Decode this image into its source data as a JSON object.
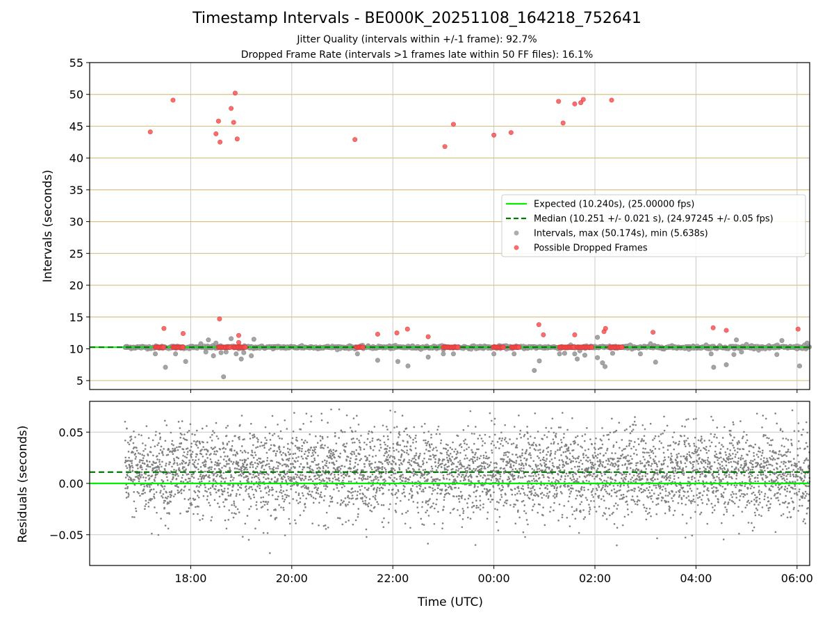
{
  "title": "Timestamp Intervals - BE000K_20251108_164218_752641",
  "subtitle_lines": [
    "Jitter Quality (intervals within +/-1 frame): 92.7%",
    "Dropped Frame Rate (intervals >1 frames late within 50 FF files): 16.1%"
  ],
  "chart_data": [
    {
      "type": "scatter",
      "panel": "top",
      "ylabel": "Intervals (seconds)",
      "xlim_hours": [
        16.0,
        30.25
      ],
      "ylim": [
        3.6,
        55
      ],
      "yticks": [
        5,
        10,
        15,
        20,
        25,
        30,
        35,
        40,
        45,
        50,
        55
      ],
      "hlines_minor": [
        5,
        15,
        20,
        25,
        30,
        35,
        40,
        45,
        50
      ],
      "expected_line": 10.24,
      "median_line": 10.251,
      "legend": {
        "placement": "center-right",
        "entries": [
          {
            "label": "Expected (10.240s), (25.00000 fps)",
            "kind": "line",
            "color": "#00ee00"
          },
          {
            "label": "Median (10.251 +/- 0.021 s), (24.97245 +/- 0.05 fps)",
            "kind": "dashed",
            "color": "#007700"
          },
          {
            "label": "Intervals, max (50.174s), min (5.638s)",
            "kind": "marker",
            "color": "#a0a0a0"
          },
          {
            "label": "Possible Dropped Frames",
            "kind": "marker",
            "color": "#f55555"
          }
        ]
      },
      "interval_band": {
        "x_start": 16.7,
        "x_end": 30.25,
        "y": 10.24
      },
      "intervals_outliers": [
        [
          17.3,
          9.2
        ],
        [
          17.5,
          7.1
        ],
        [
          17.7,
          9.2
        ],
        [
          17.9,
          8.0
        ],
        [
          18.2,
          10.8
        ],
        [
          18.3,
          9.5
        ],
        [
          18.35,
          11.4
        ],
        [
          18.45,
          8.9
        ],
        [
          18.5,
          10.9
        ],
        [
          18.6,
          9.4
        ],
        [
          18.65,
          5.6
        ],
        [
          18.7,
          9.5
        ],
        [
          18.8,
          11.6
        ],
        [
          18.9,
          9.2
        ],
        [
          18.95,
          10.0
        ],
        [
          19.0,
          8.4
        ],
        [
          19.05,
          9.4
        ],
        [
          19.2,
          8.9
        ],
        [
          19.25,
          11.5
        ],
        [
          19.8,
          10.3
        ],
        [
          20.2,
          10.5
        ],
        [
          21.3,
          9.2
        ],
        [
          21.7,
          8.2
        ],
        [
          22.1,
          8.0
        ],
        [
          22.3,
          7.3
        ],
        [
          22.7,
          8.7
        ],
        [
          23.0,
          9.2
        ],
        [
          23.2,
          9.2
        ],
        [
          24.0,
          9.2
        ],
        [
          24.4,
          9.2
        ],
        [
          24.8,
          6.6
        ],
        [
          24.9,
          8.1
        ],
        [
          25.3,
          9.2
        ],
        [
          25.4,
          9.3
        ],
        [
          25.6,
          9.2
        ],
        [
          25.65,
          8.4
        ],
        [
          25.7,
          9.7
        ],
        [
          25.8,
          9.0
        ],
        [
          26.05,
          8.6
        ],
        [
          26.05,
          11.8
        ],
        [
          26.15,
          7.8
        ],
        [
          26.2,
          7.2
        ],
        [
          26.35,
          9.3
        ],
        [
          26.5,
          10.2
        ],
        [
          26.7,
          10.6
        ],
        [
          26.9,
          9.2
        ],
        [
          27.1,
          10.8
        ],
        [
          27.2,
          7.9
        ],
        [
          27.5,
          10.3
        ],
        [
          28.2,
          10.6
        ],
        [
          28.3,
          9.2
        ],
        [
          28.35,
          7.1
        ],
        [
          28.6,
          7.5
        ],
        [
          28.75,
          9.1
        ],
        [
          28.8,
          11.4
        ],
        [
          28.9,
          9.5
        ],
        [
          29.0,
          10.7
        ],
        [
          29.1,
          10.5
        ],
        [
          29.6,
          9.1
        ],
        [
          29.7,
          11.3
        ],
        [
          30.0,
          10.0
        ],
        [
          30.05,
          7.3
        ],
        [
          30.15,
          10.6
        ],
        [
          30.2,
          10.9
        ]
      ],
      "dropped_frames": [
        [
          17.2,
          44.1
        ],
        [
          17.47,
          13.2
        ],
        [
          17.65,
          49.1
        ],
        [
          17.85,
          12.4
        ],
        [
          18.5,
          43.8
        ],
        [
          18.55,
          45.8
        ],
        [
          18.58,
          42.5
        ],
        [
          18.57,
          14.7
        ],
        [
          18.8,
          47.8
        ],
        [
          18.85,
          45.6
        ],
        [
          18.88,
          50.2
        ],
        [
          18.92,
          43.0
        ],
        [
          18.95,
          12.1
        ],
        [
          18.95,
          11.0
        ],
        [
          21.25,
          42.9
        ],
        [
          21.7,
          12.3
        ],
        [
          22.08,
          12.5
        ],
        [
          22.29,
          13.1
        ],
        [
          22.7,
          11.9
        ],
        [
          23.03,
          41.8
        ],
        [
          23.2,
          45.3
        ],
        [
          24.0,
          43.6
        ],
        [
          24.34,
          44.0
        ],
        [
          24.89,
          13.8
        ],
        [
          24.98,
          12.2
        ],
        [
          25.28,
          48.9
        ],
        [
          25.37,
          45.5
        ],
        [
          25.6,
          48.5
        ],
        [
          25.6,
          12.2
        ],
        [
          25.72,
          48.7
        ],
        [
          25.77,
          49.2
        ],
        [
          26.33,
          49.1
        ],
        [
          26.18,
          12.7
        ],
        [
          26.21,
          13.2
        ],
        [
          27.15,
          12.6
        ],
        [
          28.34,
          13.3
        ],
        [
          28.6,
          12.9
        ],
        [
          30.02,
          13.1
        ]
      ],
      "dropped_clusters": [
        [
          17.3,
          17.48
        ],
        [
          17.65,
          17.85
        ],
        [
          18.55,
          18.8
        ],
        [
          18.85,
          19.1
        ],
        [
          21.28,
          21.42
        ],
        [
          23.0,
          23.3
        ],
        [
          23.99,
          24.2
        ],
        [
          24.35,
          24.5
        ],
        [
          25.3,
          25.6
        ],
        [
          25.65,
          25.95
        ],
        [
          26.3,
          26.55
        ]
      ]
    },
    {
      "type": "scatter",
      "panel": "bottom",
      "xlabel": "Time (UTC)",
      "ylabel": "Residuals (seconds)",
      "xlim_hours": [
        16.0,
        30.25
      ],
      "ylim": [
        -0.08,
        0.08
      ],
      "yticks": [
        -0.05,
        0.0,
        0.05
      ],
      "ytick_labels": [
        "−0.05",
        "0.00",
        "0.05"
      ],
      "xticks_hours": [
        18,
        20,
        22,
        24,
        26,
        28,
        30
      ],
      "xtick_labels": [
        "18:00",
        "20:00",
        "22:00",
        "00:00",
        "02:00",
        "04:00",
        "06:00"
      ],
      "zero_line": 0.0,
      "median_residual": 0.011,
      "residual_spread": {
        "x_start": 16.7,
        "x_end": 30.25,
        "center": 0.011,
        "sigma": 0.021,
        "min": -0.075,
        "max": 0.073
      }
    }
  ],
  "colors": {
    "expected": "#00ee00",
    "median": "#007700",
    "interval_dot": "#a0a0a0",
    "interval_edge": "#888888",
    "dropped_dot": "#f55555",
    "dropped_edge": "#e03030",
    "residual_dot": "#808080",
    "hline_minor": "#d8c283",
    "grid": "#c8c8c8"
  }
}
